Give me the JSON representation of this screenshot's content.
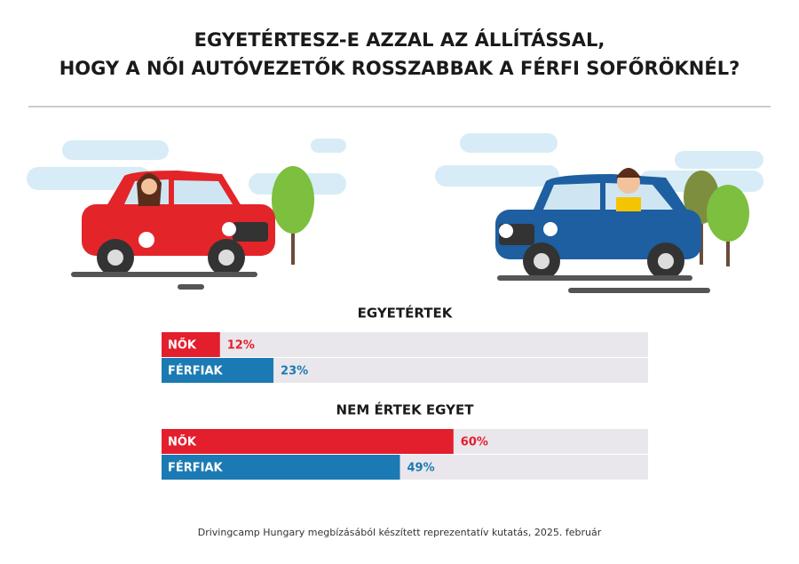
{
  "title": [
    "EGYETÉRTESZ-E AZZAL AZ ÁLLÍTÁSSAL,",
    "HOGY A NŐI AUTÓVEZETŐK ROSSZABBAK A FÉRFI SOFŐRÖKNÉL?"
  ],
  "note": "Drivingcamp Hungary megbízásából készített reprezentatív kutatás, 2025. február",
  "chart_data": [
    {
      "type": "bar",
      "orientation": "horizontal",
      "title": "EGYETÉRTEK",
      "categories": [
        "NŐK",
        "FÉRFIAK"
      ],
      "values": [
        12,
        23
      ],
      "value_labels": [
        "12%",
        "23%"
      ],
      "colors": [
        "#e31e2d",
        "#1b7ab3"
      ],
      "xlim": [
        0,
        100
      ]
    },
    {
      "type": "bar",
      "orientation": "horizontal",
      "title": "NEM ÉRTEK EGYET",
      "categories": [
        "NŐK",
        "FÉRFIAK"
      ],
      "values": [
        60,
        49
      ],
      "value_labels": [
        "60%",
        "49%"
      ],
      "colors": [
        "#e31e2d",
        "#1b7ab3"
      ],
      "xlim": [
        0,
        100
      ]
    }
  ]
}
